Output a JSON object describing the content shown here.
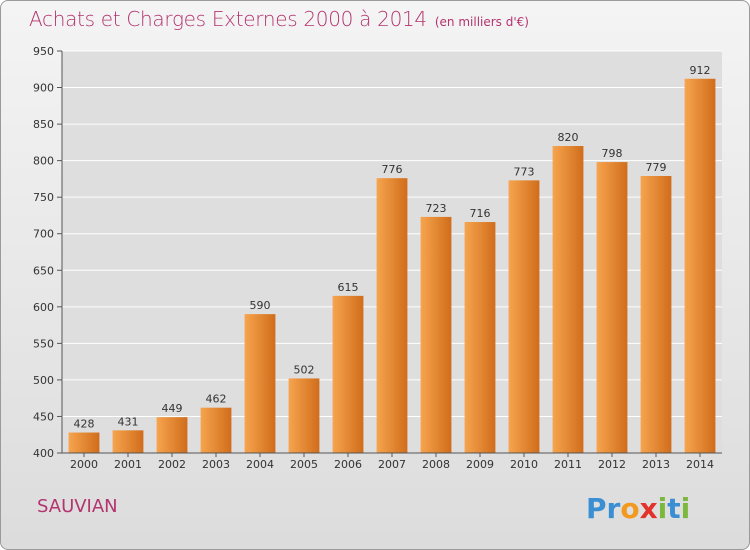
{
  "header": {
    "title": "Achats et Charges Externes 2000 à 2014",
    "unit": "(en milliers d'€)"
  },
  "footer": {
    "commune": "SAUVIAN",
    "logo_text": "Proxiti"
  },
  "colors": {
    "title": "#b4346f",
    "bar_light": "#f7a44f",
    "bar_dark": "#d06d1a",
    "gridline": "#ffffff"
  },
  "chart_data": {
    "type": "bar",
    "title": "Achats et Charges Externes 2000 à 2014",
    "subtitle": "(en milliers d'€)",
    "categories": [
      "2000",
      "2001",
      "2002",
      "2003",
      "2004",
      "2005",
      "2006",
      "2007",
      "2008",
      "2009",
      "2010",
      "2011",
      "2012",
      "2013",
      "2014"
    ],
    "values": [
      428,
      431,
      449,
      462,
      590,
      502,
      615,
      776,
      723,
      716,
      773,
      820,
      798,
      779,
      912
    ],
    "ylim": [
      400,
      950
    ],
    "yticks": [
      400,
      450,
      500,
      550,
      600,
      650,
      700,
      750,
      800,
      850,
      900,
      950
    ],
    "grid": true,
    "data_labels": true
  }
}
